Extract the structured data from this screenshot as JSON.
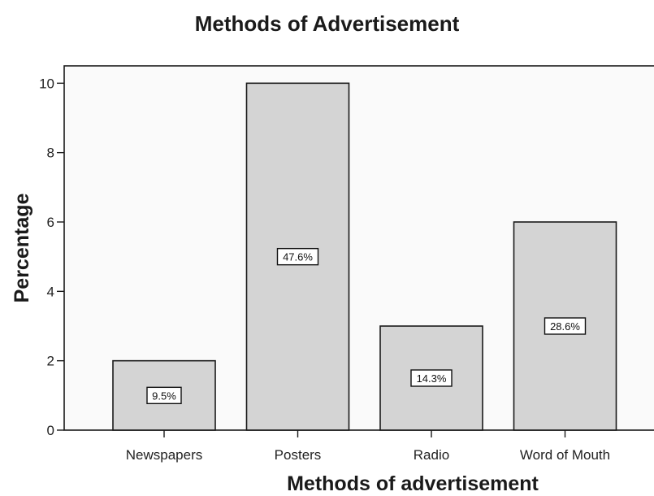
{
  "chart_data": {
    "type": "bar",
    "title": "Methods of Advertisement",
    "xlabel": "Methods of advertisement",
    "ylabel": "Percentage",
    "categories": [
      "Newspapers",
      "Posters",
      "Radio",
      "Word of Mouth"
    ],
    "values": [
      2,
      10,
      3,
      6
    ],
    "data_labels": [
      "9.5%",
      "47.6%",
      "14.3%",
      "28.6%"
    ],
    "ylim": [
      0,
      10.5
    ],
    "yticks": [
      0,
      2,
      4,
      6,
      8,
      10
    ],
    "grid": false,
    "legend": "none",
    "colors": {
      "plot_background": "#fafafa",
      "bar_fill": "#d4d4d4",
      "bar_stroke": "#1a1a1a",
      "axis": "#1a1a1a"
    }
  }
}
